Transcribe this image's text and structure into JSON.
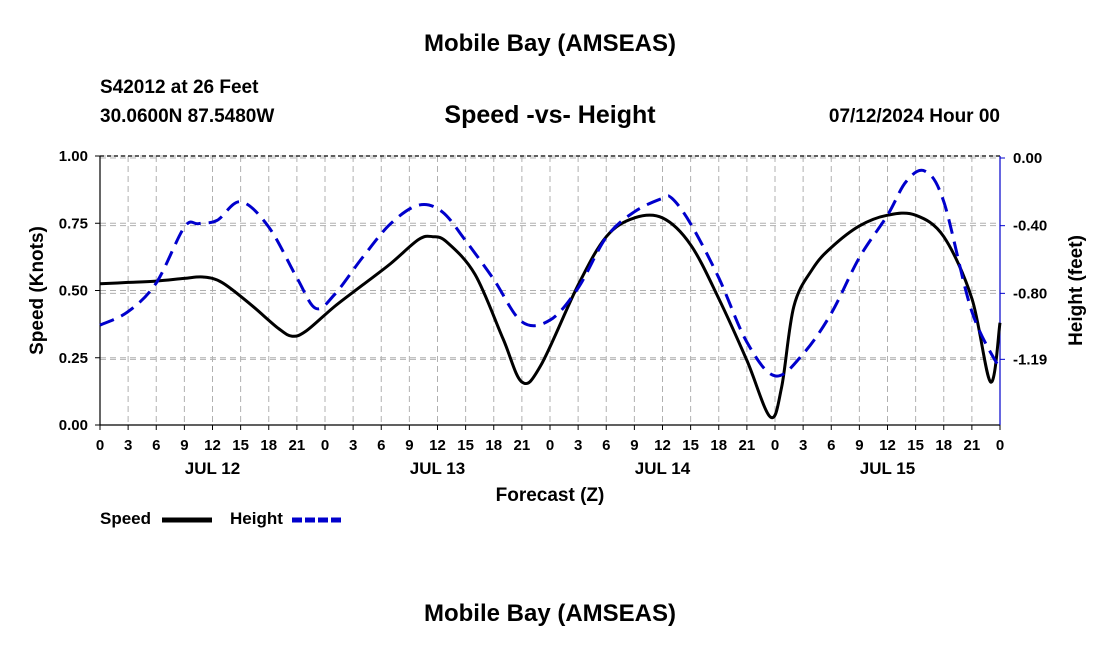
{
  "header": {
    "title": "Mobile Bay (AMSEAS)",
    "station": "S42012 at 26 Feet",
    "coords": "30.0600N  87.5480W",
    "subtitle": "Speed -vs- Height",
    "datetime": "07/12/2024 Hour 00"
  },
  "footer": {
    "title": "Mobile Bay (AMSEAS)"
  },
  "legend": {
    "speed_label": "Speed",
    "height_label": "Height"
  },
  "colors": {
    "speed": "#000000",
    "height": "#0000cc",
    "grid": "#b0b0b0"
  },
  "chart_data": {
    "type": "line",
    "title": "Speed -vs- Height",
    "xlabel": "Forecast (Z)",
    "ylabel": "Speed (Knots)",
    "y2label": "Height (feet)",
    "xlim": [
      0,
      96
    ],
    "ylim": [
      0,
      1
    ],
    "y2lim": [
      -1.59,
      0
    ],
    "x_ticks": [
      0,
      3,
      6,
      9,
      12,
      15,
      18,
      21,
      24,
      27,
      30,
      33,
      36,
      39,
      42,
      45,
      48,
      51,
      54,
      57,
      60,
      63,
      66,
      69,
      72,
      75,
      78,
      81,
      84,
      87,
      90,
      93,
      96
    ],
    "x_tick_labels": [
      "0",
      "3",
      "6",
      "9",
      "12",
      "15",
      "18",
      "21",
      "0",
      "3",
      "6",
      "9",
      "12",
      "15",
      "18",
      "21",
      "0",
      "3",
      "6",
      "9",
      "12",
      "15",
      "18",
      "21",
      "0",
      "3",
      "6",
      "9",
      "12",
      "15",
      "18",
      "21",
      "0"
    ],
    "day_labels": [
      {
        "x": 12,
        "label": "JUL 12"
      },
      {
        "x": 36,
        "label": "JUL 13"
      },
      {
        "x": 60,
        "label": "JUL 14"
      },
      {
        "x": 84,
        "label": "JUL 15"
      }
    ],
    "y_ticks": [
      0,
      0.25,
      0.5,
      0.75,
      1.0
    ],
    "y_tick_labels": [
      "0.00",
      "0.25",
      "0.50",
      "0.75",
      "1.00"
    ],
    "y2_ticks": [
      0,
      -0.4,
      -0.8,
      -1.19
    ],
    "y2_tick_labels": [
      "0.00",
      "-0.40",
      "-0.80",
      "-1.19"
    ],
    "grid": true,
    "series": [
      {
        "name": "Speed",
        "axis": "left",
        "style": "solid",
        "x": [
          0,
          3,
          6,
          9,
          11,
          13,
          16,
          19,
          20.5,
          22,
          25,
          28,
          31,
          34,
          35.5,
          37,
          40,
          43,
          45,
          47,
          51,
          54,
          57,
          60,
          63,
          66,
          69,
          71.5,
          72.7,
          74,
          76,
          78,
          81,
          84,
          87,
          90,
          93,
          95,
          96
        ],
        "values": [
          0.525,
          0.53,
          0.535,
          0.545,
          0.55,
          0.53,
          0.45,
          0.36,
          0.33,
          0.35,
          0.44,
          0.52,
          0.6,
          0.69,
          0.7,
          0.68,
          0.56,
          0.32,
          0.16,
          0.22,
          0.52,
          0.7,
          0.77,
          0.77,
          0.67,
          0.47,
          0.24,
          0.03,
          0.14,
          0.44,
          0.58,
          0.66,
          0.74,
          0.78,
          0.78,
          0.7,
          0.47,
          0.16,
          0.38
        ]
      },
      {
        "name": "Height",
        "axis": "right",
        "style": "dashed",
        "x": [
          0,
          3,
          6,
          9,
          10.5,
          12.5,
          15,
          18,
          21,
          23,
          25,
          28,
          31,
          34,
          36.5,
          39,
          42,
          45,
          48,
          51,
          54,
          57,
          60,
          61,
          63,
          66,
          69,
          72,
          75,
          78,
          81,
          84,
          86,
          88,
          90,
          93,
          96
        ],
        "values": [
          -1.0,
          -0.92,
          -0.75,
          -0.42,
          -0.4,
          -0.38,
          -0.27,
          -0.42,
          -0.72,
          -0.9,
          -0.82,
          -0.6,
          -0.4,
          -0.29,
          -0.33,
          -0.5,
          -0.73,
          -0.98,
          -0.97,
          -0.78,
          -0.48,
          -0.33,
          -0.25,
          -0.25,
          -0.4,
          -0.72,
          -1.1,
          -1.3,
          -1.17,
          -0.93,
          -0.6,
          -0.35,
          -0.15,
          -0.09,
          -0.27,
          -0.92,
          -1.26
        ]
      }
    ]
  }
}
